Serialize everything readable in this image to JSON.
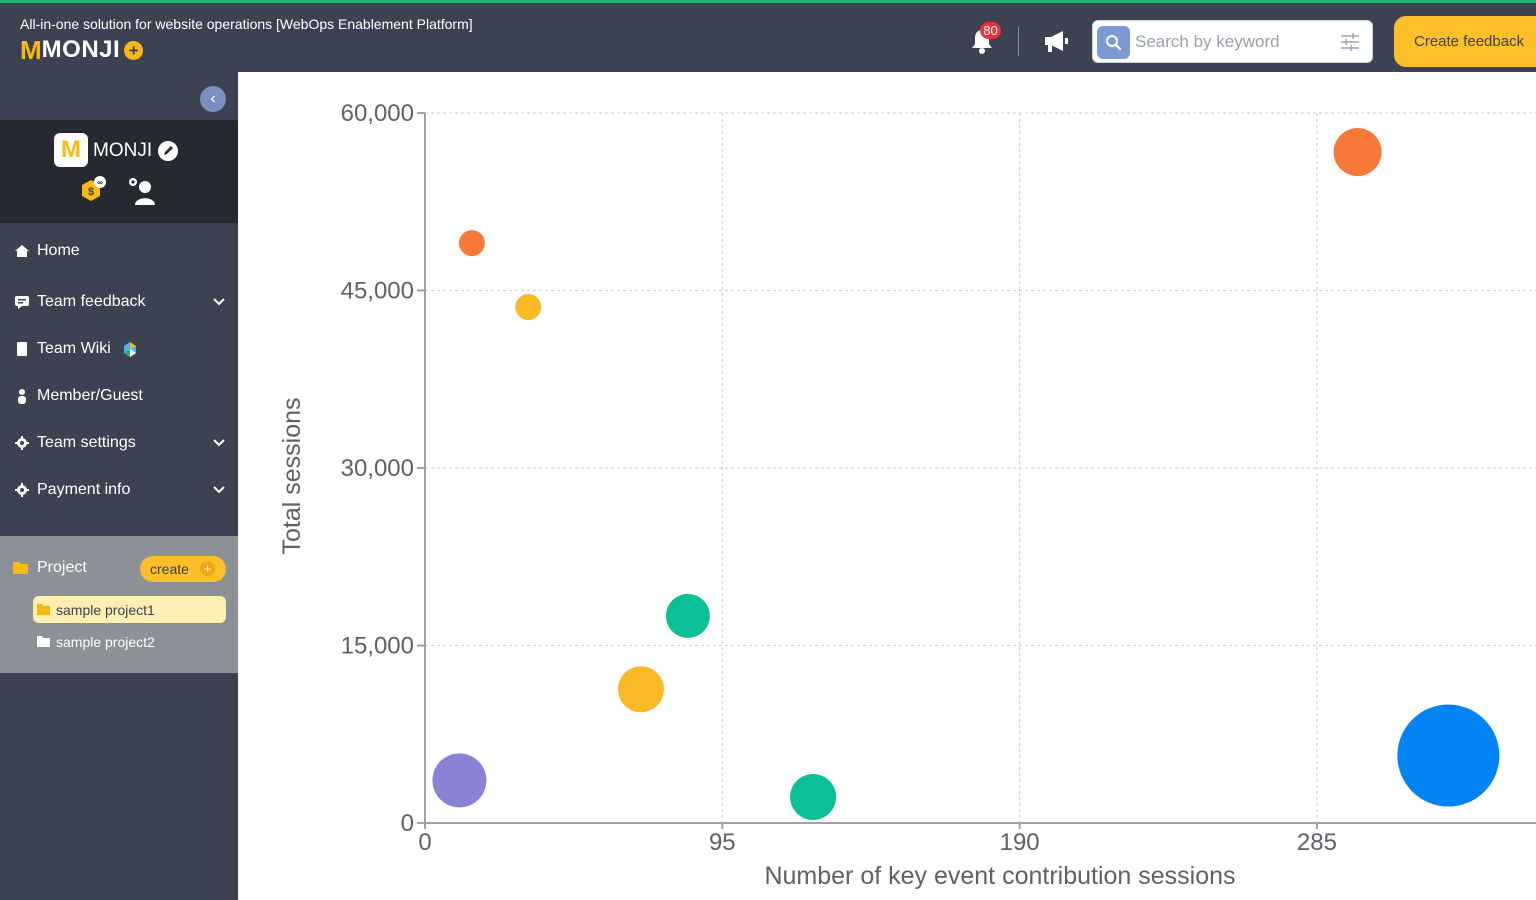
{
  "header": {
    "tagline": "All-in-one solution for website operations [WebOps Enablement Platform]",
    "logo": {
      "m": "M",
      "rest": "MONJI",
      "plus": "+"
    },
    "notification_count": "80",
    "search": {
      "placeholder": "Search by keyword",
      "value": ""
    },
    "create_feedback_label": "Create feedback"
  },
  "sidebar": {
    "collapse_glyph": "‹",
    "team": {
      "logo_letter": "M",
      "name": "MONJI"
    },
    "nav": [
      {
        "label": "Home"
      },
      {
        "label": "Team feedback"
      },
      {
        "label": "Team Wiki"
      },
      {
        "label": "Member/Guest"
      },
      {
        "label": "Team settings"
      },
      {
        "label": "Payment info"
      }
    ],
    "project": {
      "label": "Project",
      "create_label": "create",
      "create_plus": "+",
      "items": [
        {
          "label": "sample project1"
        },
        {
          "label": "sample project2"
        }
      ]
    }
  },
  "colors": {
    "header_bg": "#3d4252",
    "accent_yellow": "#fbc028",
    "badge_red": "#e8313a",
    "top_accent": "#22b573"
  },
  "chart_data": {
    "type": "scatter",
    "xlabel": "Number of key event contribution sessions",
    "ylabel": "Total sessions",
    "xlim": [
      0,
      355
    ],
    "ylim": [
      0,
      60000
    ],
    "xticks": [
      0,
      95,
      190,
      285
    ],
    "yticks": [
      0,
      15000,
      30000,
      45000,
      60000
    ],
    "xtick_labels": [
      "0",
      "95",
      "190",
      "285"
    ],
    "ytick_labels": [
      "0",
      "15,000",
      "30,000",
      "45,000",
      "60,000"
    ],
    "grid": true,
    "points": [
      {
        "x": 15,
        "y": 49000,
        "size": 13,
        "color": "#f6793a"
      },
      {
        "x": 33,
        "y": 43600,
        "size": 13,
        "color": "#fbb928"
      },
      {
        "x": 84,
        "y": 17500,
        "size": 22,
        "color": "#0bbf97"
      },
      {
        "x": 69,
        "y": 11300,
        "size": 23,
        "color": "#fbb928"
      },
      {
        "x": 11,
        "y": 3600,
        "size": 27,
        "color": "#8a82d4"
      },
      {
        "x": 124,
        "y": 2200,
        "size": 23,
        "color": "#0bbf97"
      },
      {
        "x": 298,
        "y": 56700,
        "size": 24,
        "color": "#f6793a"
      },
      {
        "x": 327,
        "y": 5700,
        "size": 51,
        "color": "#0383f4"
      }
    ]
  }
}
